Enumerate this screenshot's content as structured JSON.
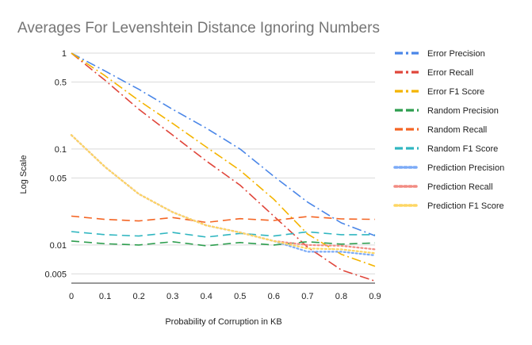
{
  "chart_data": {
    "type": "line",
    "title": "Averages For Levenshtein Distance Ignoring Numbers",
    "xlabel": "Probability of Corruption in KB",
    "ylabel": "Log Scale",
    "x": [
      0,
      0.1,
      0.2,
      0.3,
      0.4,
      0.5,
      0.6,
      0.7,
      0.8,
      0.9
    ],
    "x_ticks": [
      "0",
      "0.1",
      "0.2",
      "0.3",
      "0.4",
      "0.5",
      "0.6",
      "0.7",
      "0.8",
      "0.9"
    ],
    "y_scale": "log",
    "ylim": [
      0.004,
      1
    ],
    "y_ticks": [
      {
        "value": 1,
        "label": "1"
      },
      {
        "value": 0.5,
        "label": "0.5"
      },
      {
        "value": 0.1,
        "label": "0.1"
      },
      {
        "value": 0.05,
        "label": "0.05"
      },
      {
        "value": 0.01,
        "label": "0.01"
      },
      {
        "value": 0.005,
        "label": "0.005"
      }
    ],
    "legend_position": "right",
    "grid": "horizontal",
    "series": [
      {
        "name": "Error Precision",
        "color": "#4a86e8",
        "dash": "dashdot",
        "values": [
          1.0,
          0.65,
          0.42,
          0.26,
          0.165,
          0.1,
          0.052,
          0.028,
          0.017,
          0.0125
        ]
      },
      {
        "name": "Error Recall",
        "color": "#e0463b",
        "dash": "dashdot",
        "values": [
          1.0,
          0.52,
          0.26,
          0.14,
          0.075,
          0.042,
          0.02,
          0.0095,
          0.0055,
          0.0042
        ]
      },
      {
        "name": "Error F1 Score",
        "color": "#f4b400",
        "dash": "dashdot",
        "values": [
          1.0,
          0.58,
          0.32,
          0.185,
          0.105,
          0.06,
          0.03,
          0.013,
          0.008,
          0.006
        ]
      },
      {
        "name": "Random Precision",
        "color": "#2e9e4f",
        "dash": "dashed",
        "values": [
          0.011,
          0.0103,
          0.01,
          0.0108,
          0.0098,
          0.0106,
          0.01,
          0.0108,
          0.0102,
          0.0105
        ]
      },
      {
        "name": "Random Recall",
        "color": "#f46524",
        "dash": "dashed",
        "values": [
          0.02,
          0.0185,
          0.0178,
          0.0193,
          0.0172,
          0.0188,
          0.018,
          0.0198,
          0.0187,
          0.0185
        ]
      },
      {
        "name": "Random F1 Score",
        "color": "#30b6c0",
        "dash": "dashed",
        "values": [
          0.0138,
          0.0128,
          0.0124,
          0.0135,
          0.0121,
          0.0132,
          0.0124,
          0.0137,
          0.0128,
          0.0128
        ]
      },
      {
        "name": "Prediction Precision",
        "color": "#7baaf7",
        "dash": "dotted",
        "values": [
          0.14,
          0.065,
          0.034,
          0.022,
          0.016,
          0.0135,
          0.011,
          0.0085,
          0.0085,
          0.0078
        ]
      },
      {
        "name": "Prediction Recall",
        "color": "#f28b82",
        "dash": "dotted",
        "values": [
          0.14,
          0.065,
          0.034,
          0.022,
          0.016,
          0.0135,
          0.011,
          0.01,
          0.0098,
          0.009
        ]
      },
      {
        "name": "Prediction F1 Score",
        "color": "#fdd663",
        "dash": "dotted",
        "values": [
          0.14,
          0.065,
          0.034,
          0.022,
          0.016,
          0.0135,
          0.011,
          0.0092,
          0.009,
          0.0082
        ]
      }
    ]
  }
}
